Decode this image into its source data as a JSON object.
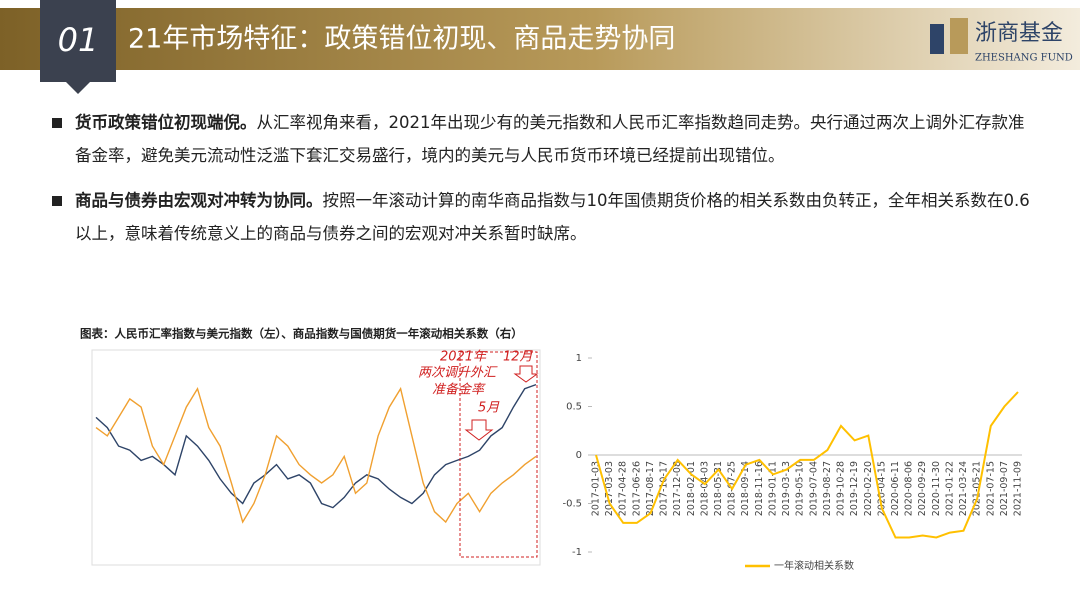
{
  "header": {
    "number": "01",
    "title": "21年市场特征：政策错位初现、商品走势协同"
  },
  "logo": {
    "cn": "浙商基金",
    "en": "ZHESHANG FUND"
  },
  "bullets": [
    {
      "bold": "货币政策错位初现端倪。",
      "text": "从汇率视角来看，2021年出现少有的美元指数和人民币汇率指数趋同走势。央行通过两次上调外汇存款准备金率，避免美元流动性泛滥下套汇交易盛行，境内的美元与人民币货币环境已经提前出现错位。"
    },
    {
      "bold": "商品与债券由宏观对冲转为协同。",
      "text": "按照一年滚动计算的南华商品指数与10年国债期货价格的相关系数由负转正，全年相关系数在0.6以上，意味着传统意义上的商品与债券之间的宏观对冲关系暂时缺席。"
    }
  ],
  "caption": "图表：人民币汇率指数与美元指数（左）、商品指数与国债期货一年滚动相关系数（右）",
  "chart_data": [
    {
      "type": "line",
      "ylim": [
        0,
        100
      ],
      "annotations": [
        "2021年",
        "两次调升外汇",
        "准备金率",
        "12月",
        "5月"
      ],
      "series": [
        {
          "color": "#2e4468",
          "values": [
            72,
            67,
            58,
            56,
            51,
            53,
            49,
            44,
            63,
            58,
            51,
            42,
            35,
            30,
            40,
            44,
            49,
            42,
            44,
            40,
            30,
            28,
            33,
            40,
            44,
            42,
            37,
            33,
            30,
            35,
            44,
            49,
            51,
            53,
            56,
            63,
            67,
            77,
            86,
            88
          ]
        },
        {
          "color": "#f0a030",
          "values": [
            67,
            63,
            72,
            81,
            77,
            58,
            49,
            63,
            77,
            86,
            67,
            58,
            40,
            21,
            30,
            44,
            63,
            58,
            49,
            44,
            40,
            44,
            53,
            35,
            40,
            63,
            77,
            86,
            63,
            40,
            26,
            21,
            30,
            35,
            26,
            35,
            40,
            44,
            49,
            53
          ]
        }
      ]
    },
    {
      "type": "line",
      "categories": [
        "2017-01-03",
        "2017-03-03",
        "2017-04-28",
        "2017-06-26",
        "2017-08-17",
        "2017-10-17",
        "2017-12-08",
        "2018-02-01",
        "2018-04-03",
        "2018-05-31",
        "2018-07-25",
        "2018-09-14",
        "2018-11-16",
        "2019-01-11",
        "2019-03-13",
        "2019-05-10",
        "2019-07-04",
        "2019-08-27",
        "2019-10-28",
        "2019-12-19",
        "2020-02-20",
        "2020-04-15",
        "2020-06-11",
        "2020-08-06",
        "2020-09-29",
        "2020-11-30",
        "2021-01-22",
        "2021-03-24",
        "2021-05-21",
        "2021-07-15",
        "2021-09-07",
        "2021-11-09"
      ],
      "series": [
        {
          "name": "一年滚动相关系数",
          "color": "#ffc000",
          "values": [
            0,
            -0.5,
            -0.7,
            -0.7,
            -0.6,
            -0.25,
            -0.05,
            -0.2,
            -0.3,
            -0.15,
            -0.35,
            -0.1,
            -0.05,
            -0.2,
            -0.15,
            -0.05,
            -0.05,
            0.05,
            0.3,
            0.15,
            0.2,
            -0.55,
            -0.85,
            -0.85,
            -0.83,
            -0.85,
            -0.8,
            -0.78,
            -0.45,
            0.3,
            0.5,
            0.65
          ]
        }
      ],
      "ylim": [
        -1,
        1
      ],
      "yticks": [
        -1,
        -0.5,
        0,
        0.5,
        1
      ]
    }
  ]
}
